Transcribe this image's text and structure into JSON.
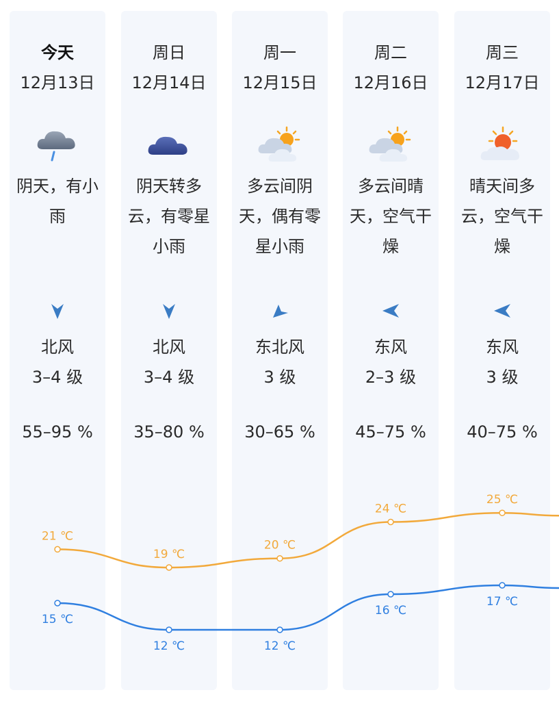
{
  "forecast": [
    {
      "day": "今天",
      "date": "12月13日",
      "weather_icon": "cloud-rain-icon",
      "desc_lines": [
        "阴天，有小",
        "雨"
      ],
      "wind_icon": "wind-arrow-south-icon",
      "wind_dir": "北风",
      "wind_level": "3–4 级",
      "humidity": "55–95 %",
      "high": 21,
      "low": 15,
      "high_label": "21 ℃",
      "low_label": "15 ℃"
    },
    {
      "day": "周日",
      "date": "12月14日",
      "weather_icon": "overcast-cloud-icon",
      "desc_lines": [
        "阴天转多",
        "云，有零星",
        "小雨"
      ],
      "wind_icon": "wind-arrow-south-icon",
      "wind_dir": "北风",
      "wind_level": "3–4 级",
      "humidity": "35–80 %",
      "high": 19,
      "low": 12,
      "high_label": "19 ℃",
      "low_label": "12 ℃"
    },
    {
      "day": "周一",
      "date": "12月15日",
      "weather_icon": "partly-cloudy-icon",
      "desc_lines": [
        "多云间阴",
        "天，偶有零",
        "星小雨"
      ],
      "wind_icon": "wind-arrow-southwest-icon",
      "wind_dir": "东北风",
      "wind_level": "3 级",
      "humidity": "30–65 %",
      "high": 20,
      "low": 12,
      "high_label": "20 ℃",
      "low_label": "12 ℃"
    },
    {
      "day": "周二",
      "date": "12月16日",
      "weather_icon": "partly-cloudy-icon",
      "desc_lines": [
        "多云间晴",
        "天，空气干",
        "燥"
      ],
      "wind_icon": "wind-arrow-west-icon",
      "wind_dir": "东风",
      "wind_level": "2–3 级",
      "humidity": "45–75 %",
      "high": 24,
      "low": 16,
      "high_label": "24 ℃",
      "low_label": "16 ℃"
    },
    {
      "day": "周三",
      "date": "12月17日",
      "weather_icon": "sunny-cloud-icon",
      "desc_lines": [
        "晴天间多",
        "云，空气干",
        "燥"
      ],
      "wind_icon": "wind-arrow-west-icon",
      "wind_dir": "东风",
      "wind_level": "3 级",
      "humidity": "40–75 %",
      "high": 25,
      "low": 17,
      "high_label": "25 ℃",
      "low_label": "17 ℃"
    }
  ],
  "colors": {
    "high_line": "#f2a93b",
    "low_line": "#2f7fe0",
    "wind_arrow": "#3a7cc4",
    "column_bg": "#f4f7fc"
  }
}
